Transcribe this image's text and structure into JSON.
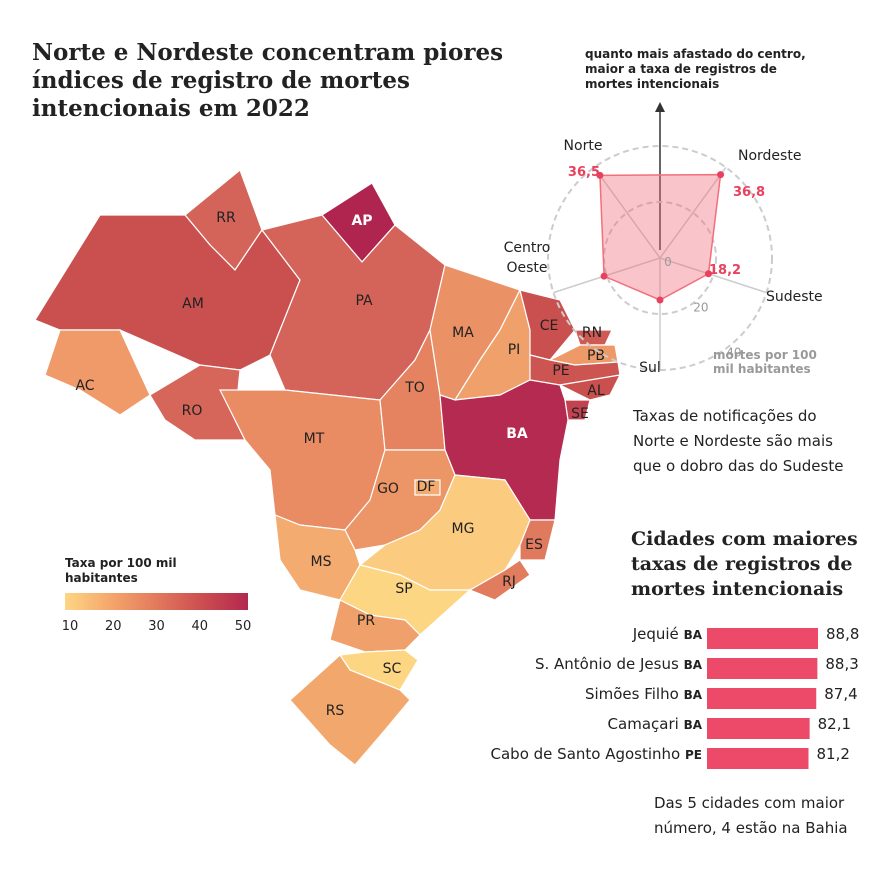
{
  "title": [
    "Norte e Nordeste concentram piores",
    "índices de registro de mortes",
    "intencionais em 2022"
  ],
  "map": {
    "legend_title": [
      "Taxa por 100 mil",
      "habitantes"
    ],
    "legend_ticks": [
      10,
      20,
      30,
      40,
      50
    ],
    "legend_colors": [
      "#fdd684",
      "#f5a66c",
      "#e27a5c",
      "#cc4d50",
      "#b3284f"
    ],
    "states": [
      "RR",
      "AP",
      "AM",
      "PA",
      "AC",
      "RO",
      "MT",
      "TO",
      "MA",
      "PI",
      "CE",
      "RN",
      "PB",
      "PE",
      "AL",
      "SE",
      "BA",
      "GO",
      "DF",
      "MS",
      "MG",
      "ES",
      "RJ",
      "SP",
      "PR",
      "SC",
      "RS"
    ]
  },
  "chart_data": [
    {
      "type": "radar",
      "annotation": [
        "quanto mais afastado do centro,",
        "maior a taxa de registros de",
        "mortes intencionais"
      ],
      "categories": [
        "Nordeste",
        "Sudeste",
        "Sul",
        "Centro Oeste",
        "Norte"
      ],
      "values": [
        36.8,
        18.2,
        15,
        21,
        36.5
      ],
      "value_labels": [
        "36,8",
        "18,2",
        null,
        null,
        "36,5"
      ],
      "rlim": [
        0,
        40
      ],
      "rticks": [
        0,
        20,
        40
      ],
      "unit_label": [
        "mortes por 100",
        "mil habitantes"
      ],
      "color": "#f26f7b"
    },
    {
      "type": "bar",
      "title": [
        "Cidades com maiores",
        "taxas de registros de",
        "mortes intencionais"
      ],
      "categories": [
        "Jequié",
        "S. Antônio de Jesus",
        "Simões Filho",
        "Camaçari",
        "Cabo de Santo Agostinho"
      ],
      "category_states": [
        "BA",
        "BA",
        "BA",
        "BA",
        "PE"
      ],
      "values": [
        88.8,
        88.3,
        87.4,
        82.1,
        81.2
      ],
      "value_labels": [
        "88,8",
        "88,3",
        "87,4",
        "82,1",
        "81,2"
      ],
      "color": "#ec4a68"
    }
  ],
  "notes": {
    "radar": [
      "Taxas de notificações do",
      "Norte e Nordeste são mais",
      "que o dobro das do Sudeste"
    ],
    "bar": [
      "Das 5 cidades com maior",
      "número, 4 estão na Bahia"
    ]
  }
}
